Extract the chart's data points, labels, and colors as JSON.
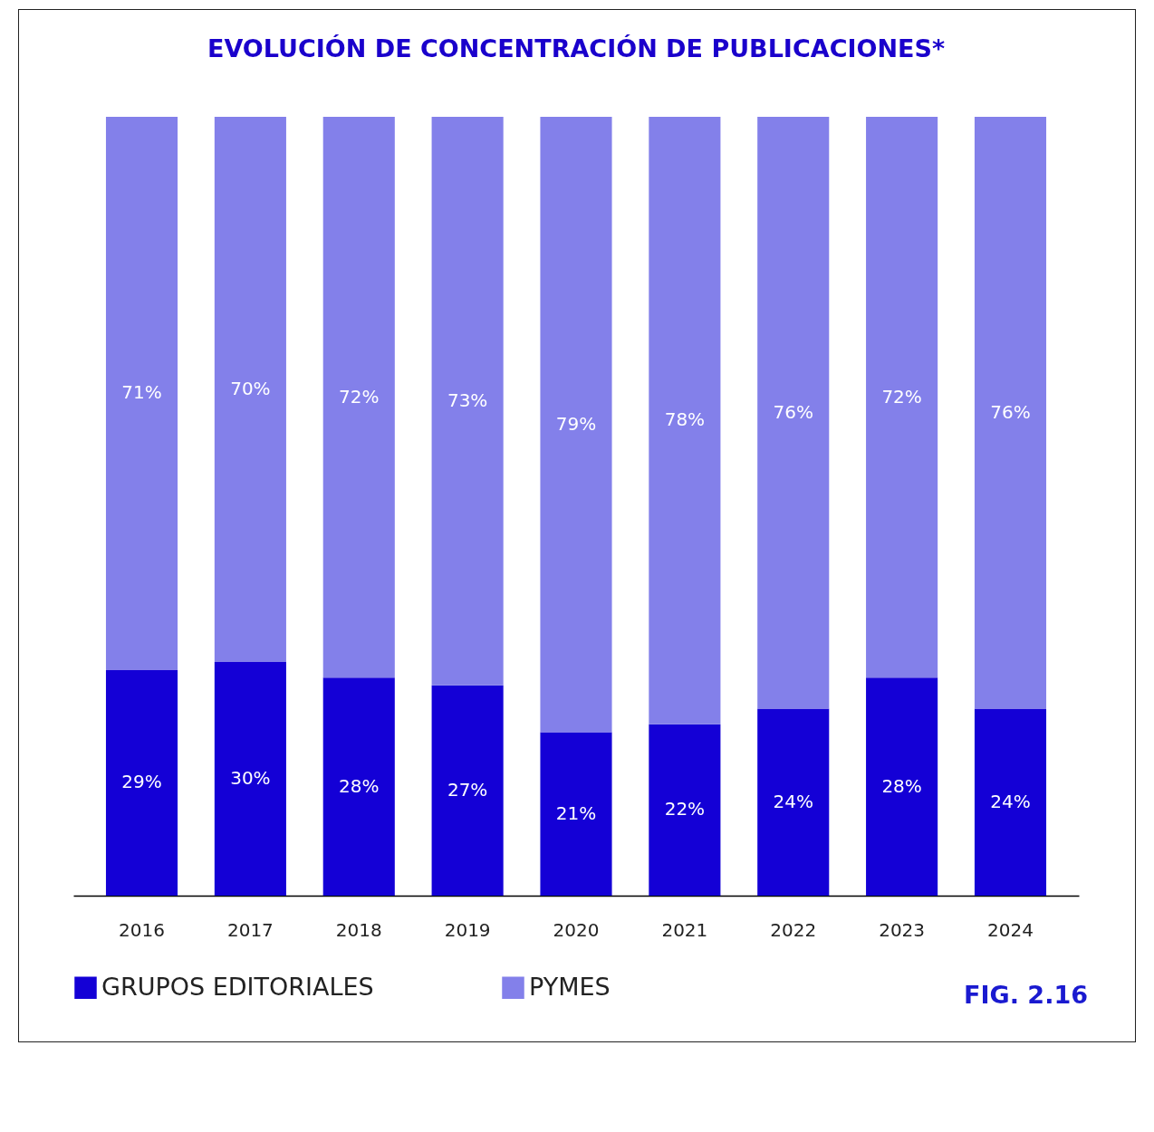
{
  "chart_data": {
    "type": "bar",
    "title": "EVOLUCIÓN DE CONCENTRACIÓN DE PUBLICACIONES*",
    "stacked": true,
    "tick_labels": "x",
    "grid": false,
    "legend": "bottom",
    "categories": [
      "2016",
      "2017",
      "2018",
      "2019",
      "2020",
      "2021",
      "2022",
      "2023",
      "2024"
    ],
    "series": [
      {
        "name": "GRUPOS EDITORIALES",
        "color": "#1400d6",
        "values": [
          29,
          30,
          28,
          27,
          21,
          22,
          24,
          28,
          24
        ],
        "value_labels": [
          "29%",
          "30%",
          "28%",
          "27%",
          "21%",
          "22%",
          "24%",
          "28%",
          "24%"
        ]
      },
      {
        "name": "PYMES",
        "color": "#8380ea",
        "values": [
          71,
          70,
          72,
          73,
          79,
          78,
          76,
          72,
          76
        ],
        "value_labels": [
          "71%",
          "70%",
          "72%",
          "73%",
          "79%",
          "78%",
          "76%",
          "72%",
          "76%"
        ]
      }
    ],
    "annotations": [
      "FIG. 2.16"
    ]
  }
}
